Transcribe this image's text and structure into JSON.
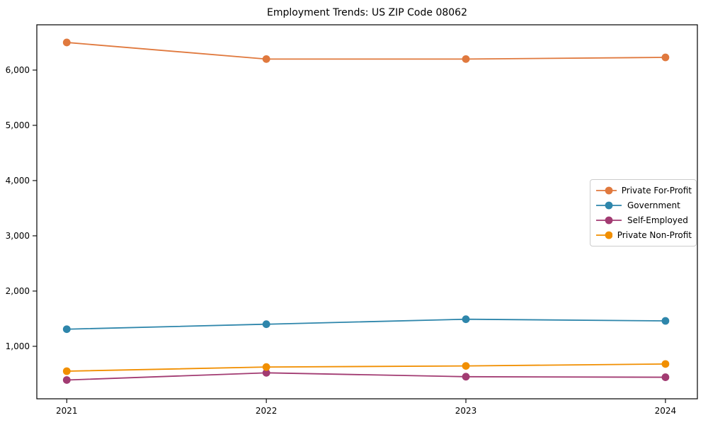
{
  "title": "Employment Trends: US ZIP Code 08062",
  "chart_data": {
    "type": "line",
    "title": "Employment Trends: US ZIP Code 08062",
    "xlabel": "",
    "ylabel": "",
    "x": [
      2021,
      2022,
      2023,
      2024
    ],
    "x_tick_labels": [
      "2021",
      "2022",
      "2023",
      "2024"
    ],
    "y_ticks": [
      1000,
      2000,
      3000,
      4000,
      5000,
      6000
    ],
    "y_tick_labels": [
      "1,000",
      "2,000",
      "3,000",
      "4,000",
      "5,000",
      "6,000"
    ],
    "xlim": [
      2020.85,
      2024.16
    ],
    "ylim": [
      50,
      6820
    ],
    "grid": false,
    "legend_position": "center right",
    "series": [
      {
        "name": "Private For-Profit",
        "color": "#E0793E",
        "values": [
          6500,
          6200,
          6200,
          6230
        ]
      },
      {
        "name": "Government",
        "color": "#2E86AB",
        "values": [
          1310,
          1400,
          1490,
          1460
        ]
      },
      {
        "name": "Self-Employed",
        "color": "#A23B72",
        "values": [
          390,
          520,
          450,
          440
        ]
      },
      {
        "name": "Private Non-Profit",
        "color": "#F18F01",
        "values": [
          550,
          625,
          645,
          680
        ]
      }
    ],
    "frame_color": "#000000",
    "tick_color": "#000000"
  }
}
